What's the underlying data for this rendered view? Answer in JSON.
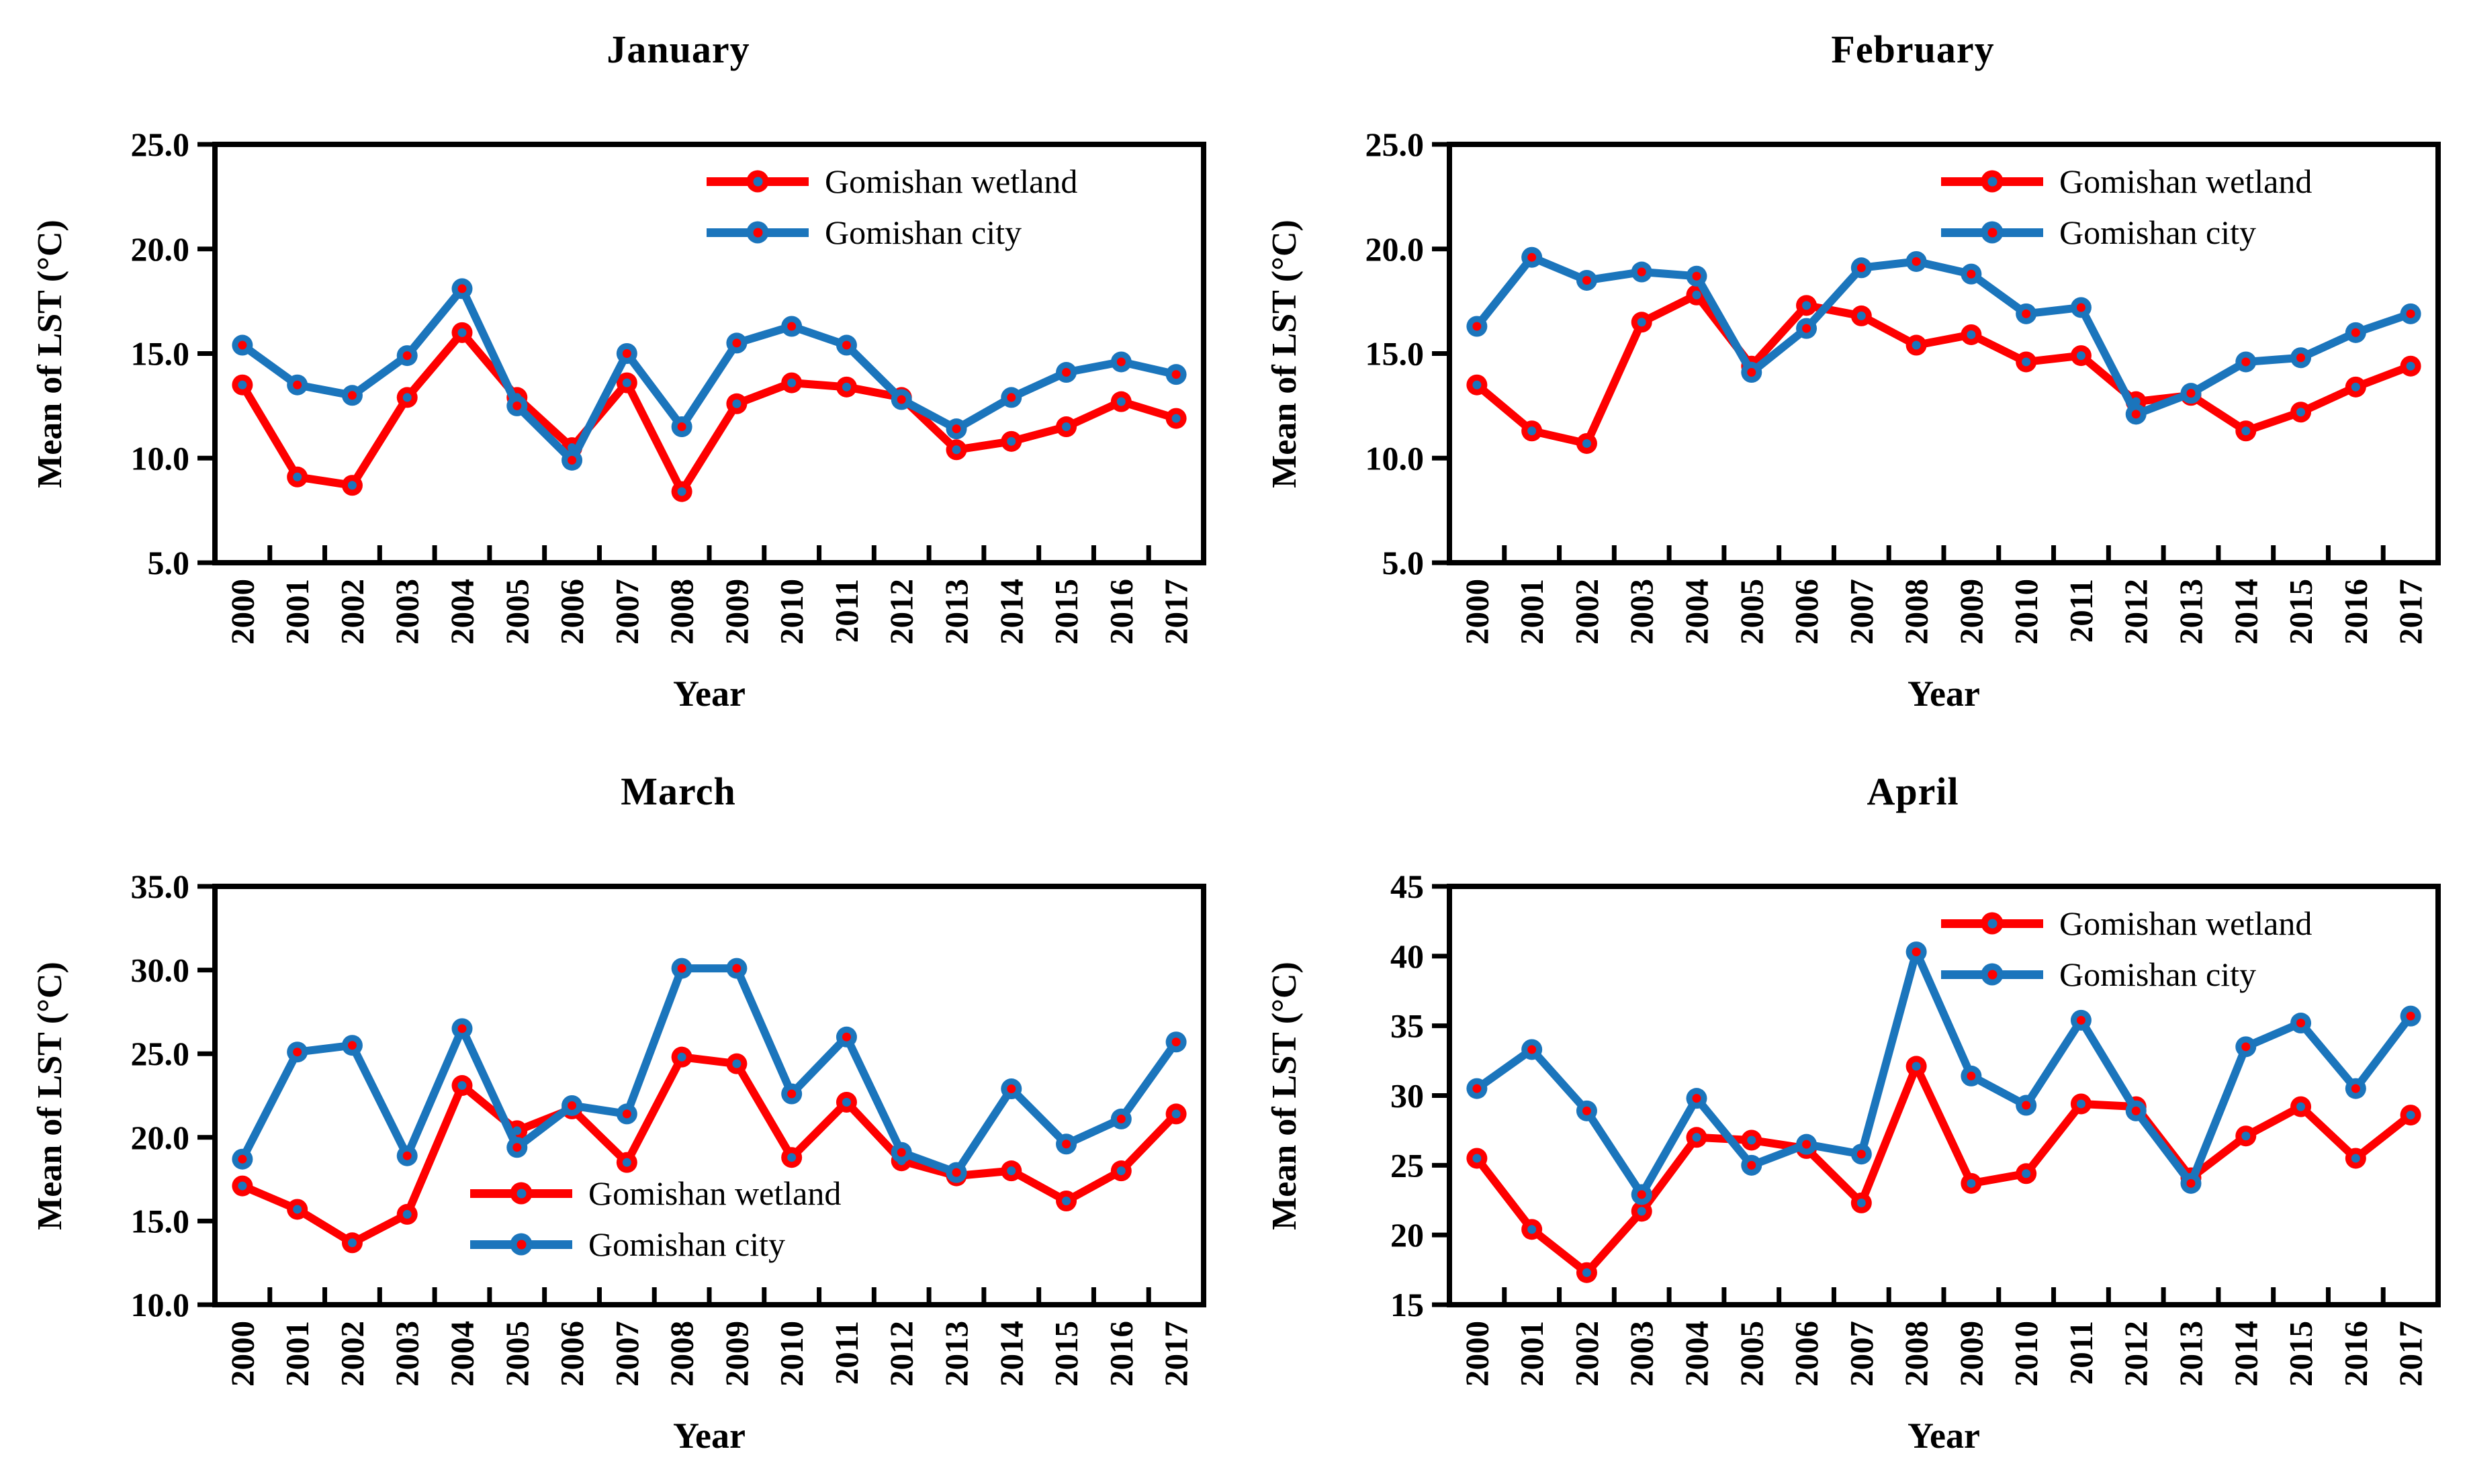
{
  "legend": {
    "wetland_label": "Gomishan wetland",
    "city_label": "Gomishan city"
  },
  "colors": {
    "wetland": "#FE0000",
    "city": "#1B75BC",
    "axis": "#000000",
    "background": "#FFFFFF"
  },
  "chart_data": {
    "type": "line",
    "x_label": "Year",
    "y_label": "Mean of LST (°C)",
    "grid": false,
    "categories": [
      "2000",
      "2001",
      "2002",
      "2003",
      "2004",
      "2005",
      "2006",
      "2007",
      "2008",
      "2009",
      "2010",
      "2011",
      "2012",
      "2013",
      "2014",
      "2015",
      "2016",
      "2017"
    ],
    "series_names": [
      "Gomishan wetland",
      "Gomishan city"
    ],
    "panels": [
      {
        "title": "January",
        "ylim": [
          5,
          25
        ],
        "yticks": [
          25,
          20,
          15,
          10,
          5
        ],
        "ytick_labels": [
          "25.0",
          "20.0",
          "15.0",
          "10.0",
          "5.0"
        ],
        "legend_position": "top-right",
        "series": [
          {
            "name": "Gomishan wetland",
            "values": [
              13.5,
              9.1,
              8.7,
              12.9,
              16.0,
              12.9,
              10.5,
              13.6,
              8.4,
              12.6,
              13.6,
              13.4,
              12.9,
              10.4,
              10.8,
              11.5,
              12.7,
              11.9
            ]
          },
          {
            "name": "Gomishan city",
            "values": [
              15.4,
              13.5,
              13.0,
              14.9,
              18.1,
              12.5,
              9.9,
              15.0,
              11.5,
              15.5,
              16.3,
              15.4,
              12.8,
              11.4,
              12.9,
              14.1,
              14.6,
              14.0
            ]
          }
        ]
      },
      {
        "title": "February",
        "ylim": [
          5,
          25
        ],
        "yticks": [
          25,
          20,
          15,
          10,
          5
        ],
        "ytick_labels": [
          "25.0",
          "20.0",
          "15.0",
          "10.0",
          "5.0"
        ],
        "legend_position": "top-right",
        "series": [
          {
            "name": "Gomishan wetland",
            "values": [
              13.5,
              11.3,
              10.7,
              16.5,
              17.8,
              14.4,
              17.3,
              16.8,
              15.4,
              15.9,
              14.6,
              14.9,
              12.7,
              13.0,
              11.3,
              12.2,
              13.4,
              14.4
            ]
          },
          {
            "name": "Gomishan city",
            "values": [
              16.3,
              19.6,
              18.5,
              18.9,
              18.7,
              14.1,
              16.2,
              19.1,
              19.4,
              18.8,
              16.9,
              17.2,
              12.1,
              13.1,
              14.6,
              14.8,
              16.0,
              16.9
            ]
          }
        ]
      },
      {
        "title": "March",
        "ylim": [
          10,
          35
        ],
        "yticks": [
          35,
          30,
          25,
          20,
          15,
          10
        ],
        "ytick_labels": [
          "35.0",
          "30.0",
          "25.0",
          "20.0",
          "15.0",
          "10.0"
        ],
        "legend_position": "bottom-center",
        "series": [
          {
            "name": "Gomishan wetland",
            "values": [
              17.1,
              15.7,
              13.7,
              15.4,
              23.1,
              20.4,
              21.7,
              18.5,
              24.8,
              24.4,
              18.8,
              22.1,
              18.6,
              17.7,
              18.0,
              16.2,
              18.0,
              21.4
            ]
          },
          {
            "name": "Gomishan city",
            "values": [
              18.7,
              25.1,
              25.5,
              18.9,
              26.5,
              19.4,
              21.9,
              21.4,
              30.1,
              30.1,
              22.6,
              26.0,
              19.1,
              17.9,
              22.9,
              19.6,
              21.1,
              25.7
            ]
          }
        ]
      },
      {
        "title": "April",
        "ylim": [
          15,
          45
        ],
        "yticks": [
          45,
          40,
          35,
          30,
          25,
          20,
          15
        ],
        "ytick_labels": [
          "45",
          "40",
          "35",
          "30",
          "25",
          "20",
          "15"
        ],
        "legend_position": "top-right",
        "series": [
          {
            "name": "Gomishan wetland",
            "values": [
              25.5,
              20.4,
              17.3,
              21.7,
              27.0,
              26.8,
              26.2,
              22.3,
              32.1,
              23.7,
              24.4,
              29.4,
              29.2,
              24.1,
              27.1,
              29.2,
              25.5,
              28.6
            ]
          },
          {
            "name": "Gomishan city",
            "values": [
              30.5,
              33.3,
              28.9,
              22.9,
              29.8,
              25.0,
              26.5,
              25.8,
              40.3,
              31.4,
              29.3,
              35.4,
              28.9,
              23.7,
              33.5,
              35.2,
              30.5,
              35.7
            ]
          }
        ]
      }
    ]
  }
}
